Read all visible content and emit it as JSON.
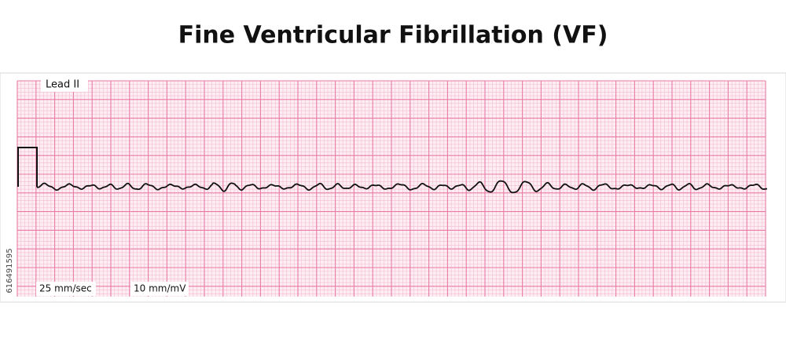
{
  "title": "Fine Ventricular Fibrillation (VF)",
  "lead": "Lead II",
  "paper_speed": "25 mm/sec",
  "gain": "10 mm/mV",
  "image_id": "616491595"
}
